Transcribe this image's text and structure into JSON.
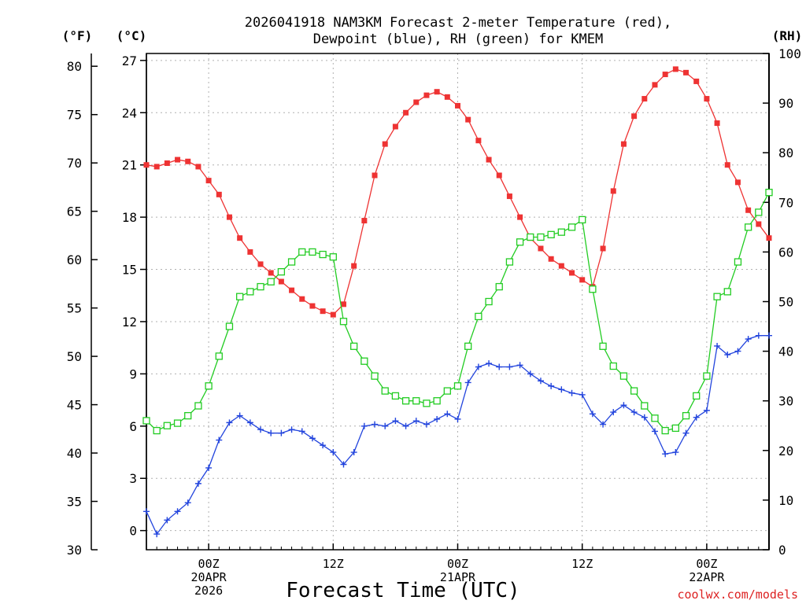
{
  "chart_data": {
    "type": "line",
    "title_line1": "2026041918 NAM3KM Forecast 2-meter Temperature (red),",
    "title_line2": "Dewpoint (blue), RH (green) for KMEM",
    "xlabel": "Forecast Time (UTC)",
    "credit": "coolwx.com/models",
    "units": {
      "fahrenheit": "(°F)",
      "celsius": "(°C)",
      "rh": "(RH)"
    },
    "x_range_hours": [
      0,
      60
    ],
    "ylim_celsius": [
      -1.1,
      27.4
    ],
    "ylim_fahrenheit": [
      30,
      81.32
    ],
    "ylim_rh": [
      0,
      100
    ],
    "fahrenheit_ticks": [
      "30",
      "35",
      "40",
      "45",
      "50",
      "55",
      "60",
      "65",
      "70",
      "75",
      "80"
    ],
    "celsius_ticks": [
      "0",
      "3",
      "6",
      "9",
      "12",
      "15",
      "18",
      "21",
      "24",
      "27"
    ],
    "rh_ticks": [
      "0",
      "10",
      "20",
      "30",
      "40",
      "50",
      "60",
      "70",
      "80",
      "90",
      "100"
    ],
    "x_ticks": [
      {
        "hour": 6,
        "lines": [
          "00Z",
          "20APR",
          "2026"
        ]
      },
      {
        "hour": 18,
        "lines": [
          "12Z"
        ]
      },
      {
        "hour": 30,
        "lines": [
          "00Z",
          "21APR"
        ]
      },
      {
        "hour": 42,
        "lines": [
          "12Z"
        ]
      },
      {
        "hour": 54,
        "lines": [
          "00Z",
          "22APR"
        ]
      }
    ],
    "colors": {
      "temperature": "#ee3333",
      "dewpoint": "#2244dd",
      "rh": "#22cc22",
      "grid": "#b0b0b0"
    },
    "series": [
      {
        "name": "Temperature (°C)",
        "axis": "celsius",
        "marker": "filled-square",
        "values": [
          21.0,
          20.9,
          21.1,
          21.3,
          21.2,
          20.9,
          20.1,
          19.3,
          18.0,
          16.8,
          16.0,
          15.3,
          14.8,
          14.3,
          13.8,
          13.3,
          12.9,
          12.6,
          12.4,
          13.0,
          15.2,
          17.8,
          20.4,
          22.2,
          23.2,
          24.0,
          24.6,
          25.0,
          25.2,
          24.9,
          24.4,
          23.6,
          22.4,
          21.3,
          20.4,
          19.2,
          18.0,
          16.8,
          16.2,
          15.6,
          15.2,
          14.8,
          14.4,
          14.0,
          16.2,
          19.5,
          22.2,
          23.8,
          24.8,
          25.6,
          26.2,
          26.5,
          26.3,
          25.8,
          24.8,
          23.4,
          21.0,
          20.0,
          18.4,
          17.6,
          16.8
        ]
      },
      {
        "name": "Dewpoint (°C)",
        "axis": "celsius",
        "marker": "plus",
        "values": [
          1.1,
          -0.2,
          0.6,
          1.1,
          1.6,
          2.7,
          3.6,
          5.2,
          6.2,
          6.6,
          6.2,
          5.8,
          5.6,
          5.6,
          5.8,
          5.7,
          5.3,
          4.9,
          4.5,
          3.8,
          4.5,
          6.0,
          6.1,
          6.0,
          6.3,
          6.0,
          6.3,
          6.1,
          6.4,
          6.7,
          6.4,
          8.5,
          9.4,
          9.6,
          9.4,
          9.4,
          9.5,
          9.0,
          8.6,
          8.3,
          8.1,
          7.9,
          7.8,
          6.7,
          6.1,
          6.8,
          7.2,
          6.8,
          6.5,
          5.7,
          4.4,
          4.5,
          5.6,
          6.5,
          6.9,
          10.6,
          10.1,
          10.3,
          11.0,
          11.2,
          11.2
        ]
      },
      {
        "name": "RH (%)",
        "axis": "rh",
        "marker": "open-square",
        "values": [
          26,
          24,
          25,
          25.5,
          27,
          29,
          33,
          39,
          45,
          51,
          52,
          53,
          54,
          56,
          58,
          60,
          60,
          59.5,
          59,
          46,
          41,
          38,
          35,
          32,
          31,
          30,
          30,
          29.5,
          30,
          32,
          33,
          41,
          47,
          50,
          53,
          58,
          62,
          63,
          63,
          63.5,
          64,
          65,
          66.5,
          52.5,
          41,
          37,
          35,
          32,
          29,
          26.5,
          24,
          24.5,
          27,
          31,
          35,
          51,
          52,
          58,
          65,
          68,
          72
        ]
      }
    ]
  }
}
